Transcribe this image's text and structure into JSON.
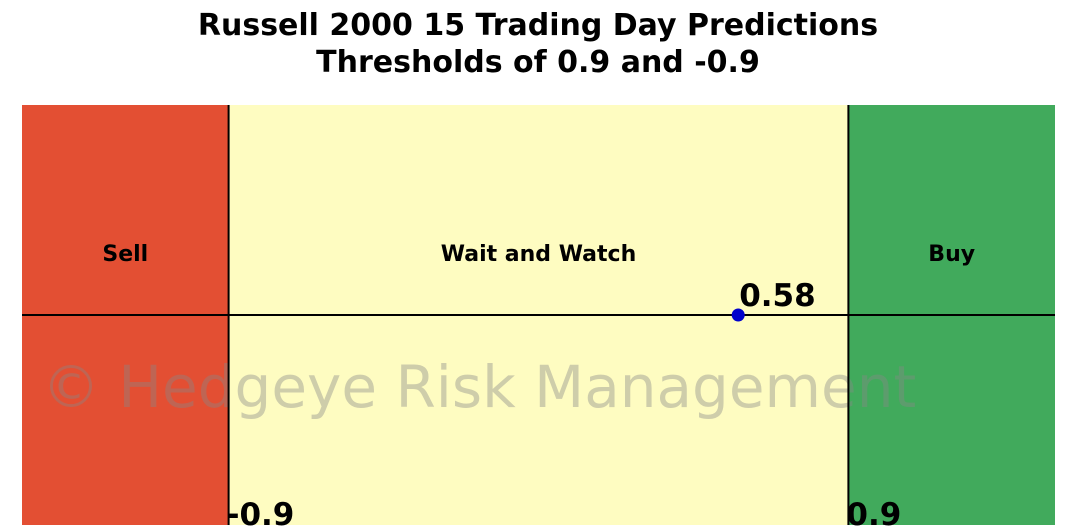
{
  "chart_data": {
    "type": "zone-gauge",
    "title": "Russell 2000 15 Trading Day Predictions",
    "subtitle": "Thresholds of 0.9 and -0.9",
    "xlim": [
      -1.5,
      1.5
    ],
    "thresholds": [
      -0.9,
      0.9
    ],
    "zones": [
      {
        "name": "Sell",
        "color": "#e34f33"
      },
      {
        "name": "Wait and Watch",
        "color": "#fefcc1"
      },
      {
        "name": "Buy",
        "color": "#41aa5c"
      }
    ],
    "value": 0.58,
    "point_color": "#0000cc",
    "watermark": "© Hedgeye Risk Management"
  }
}
